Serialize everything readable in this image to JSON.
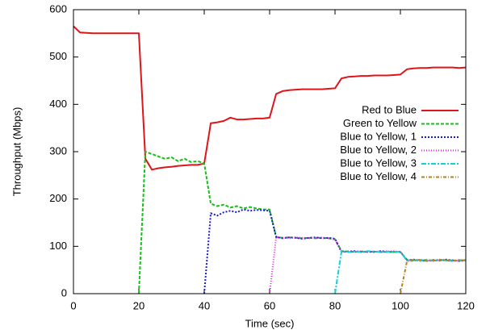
{
  "chart_data": {
    "type": "line",
    "xlabel": "Time (sec)",
    "ylabel": "Throughput (Mbps)",
    "xlim": [
      0,
      120
    ],
    "xticks": [
      0,
      20,
      40,
      60,
      80,
      100,
      120
    ],
    "ylim": [
      0,
      600
    ],
    "yticks": [
      0,
      100,
      200,
      300,
      400,
      500,
      600
    ],
    "legend": "right",
    "x": [
      0,
      2,
      4,
      6,
      8,
      10,
      12,
      14,
      16,
      18,
      20,
      22,
      24,
      26,
      28,
      30,
      32,
      34,
      36,
      38,
      40,
      42,
      44,
      46,
      48,
      50,
      52,
      54,
      56,
      58,
      60,
      62,
      64,
      66,
      68,
      70,
      72,
      74,
      76,
      78,
      80,
      82,
      84,
      86,
      88,
      90,
      92,
      94,
      96,
      98,
      100,
      102,
      104,
      106,
      108,
      110,
      112,
      114,
      116,
      118,
      120
    ],
    "series": [
      {
        "name": "Red to Blue",
        "color": "#e0151a",
        "dash": "none",
        "width": 2,
        "values": [
          565,
          552,
          551,
          550,
          550,
          550,
          550,
          550,
          550,
          550,
          550,
          285,
          262,
          265,
          267,
          268,
          270,
          271,
          272,
          272,
          275,
          360,
          362,
          365,
          372,
          368,
          368,
          369,
          370,
          370,
          372,
          422,
          428,
          430,
          431,
          432,
          432,
          432,
          432,
          433,
          434,
          455,
          458,
          459,
          460,
          460,
          461,
          461,
          461,
          462,
          463,
          474,
          476,
          477,
          477,
          478,
          478,
          478,
          478,
          477,
          478
        ]
      },
      {
        "name": "Green to Yellow",
        "color": "#16c016",
        "dash": "4,2",
        "width": 2,
        "values": [
          null,
          null,
          null,
          null,
          null,
          null,
          null,
          null,
          null,
          null,
          0,
          300,
          295,
          290,
          285,
          288,
          280,
          285,
          278,
          280,
          275,
          190,
          185,
          188,
          182,
          185,
          180,
          183,
          180,
          178,
          178,
          120,
          118,
          119,
          118,
          117,
          118,
          117,
          118,
          117,
          115,
          90,
          89,
          88,
          89,
          88,
          89,
          88,
          88,
          88,
          88,
          72,
          71,
          70,
          71,
          70,
          70,
          71,
          70,
          70,
          71
        ]
      },
      {
        "name": "Blue to Yellow, 1",
        "color": "#1a1ad0",
        "dash": "2,2",
        "width": 2,
        "values": [
          null,
          null,
          null,
          null,
          null,
          null,
          null,
          null,
          null,
          null,
          null,
          null,
          null,
          null,
          null,
          null,
          null,
          null,
          null,
          null,
          0,
          170,
          165,
          172,
          175,
          172,
          178,
          175,
          177,
          176,
          175,
          120,
          117,
          119,
          118,
          116,
          118,
          119,
          117,
          118,
          116,
          88,
          89,
          90,
          88,
          89,
          88,
          90,
          89,
          88,
          89,
          70,
          72,
          70,
          69,
          71,
          70,
          72,
          70,
          69,
          70
        ]
      },
      {
        "name": "Blue to Yellow, 2",
        "color": "#e020e0",
        "dash": "1,2",
        "width": 2,
        "values": [
          null,
          null,
          null,
          null,
          null,
          null,
          null,
          null,
          null,
          null,
          null,
          null,
          null,
          null,
          null,
          null,
          null,
          null,
          null,
          null,
          null,
          null,
          null,
          null,
          null,
          null,
          null,
          null,
          null,
          null,
          0,
          119,
          118,
          117,
          119,
          118,
          117,
          118,
          119,
          117,
          114,
          89,
          88,
          89,
          90,
          88,
          89,
          88,
          89,
          90,
          88,
          71,
          70,
          72,
          70,
          69,
          71,
          70,
          71,
          69,
          70
        ]
      },
      {
        "name": "Blue to Yellow, 3",
        "color": "#10d0e0",
        "dash": "6,2,2,2",
        "width": 2,
        "values": [
          null,
          null,
          null,
          null,
          null,
          null,
          null,
          null,
          null,
          null,
          null,
          null,
          null,
          null,
          null,
          null,
          null,
          null,
          null,
          null,
          null,
          null,
          null,
          null,
          null,
          null,
          null,
          null,
          null,
          null,
          null,
          null,
          null,
          null,
          null,
          null,
          null,
          null,
          null,
          null,
          0,
          90,
          88,
          89,
          88,
          90,
          89,
          88,
          89,
          88,
          89,
          70,
          71,
          69,
          72,
          70,
          71,
          70,
          69,
          71,
          70
        ]
      },
      {
        "name": "Blue to Yellow, 4",
        "color": "#b8801a",
        "dash": "4,2,1,2",
        "width": 2,
        "values": [
          null,
          null,
          null,
          null,
          null,
          null,
          null,
          null,
          null,
          null,
          null,
          null,
          null,
          null,
          null,
          null,
          null,
          null,
          null,
          null,
          null,
          null,
          null,
          null,
          null,
          null,
          null,
          null,
          null,
          null,
          null,
          null,
          null,
          null,
          null,
          null,
          null,
          null,
          null,
          null,
          null,
          null,
          null,
          null,
          null,
          null,
          null,
          null,
          null,
          null,
          0,
          68,
          70,
          71,
          69,
          70,
          72,
          70,
          69,
          71,
          70
        ]
      }
    ]
  }
}
